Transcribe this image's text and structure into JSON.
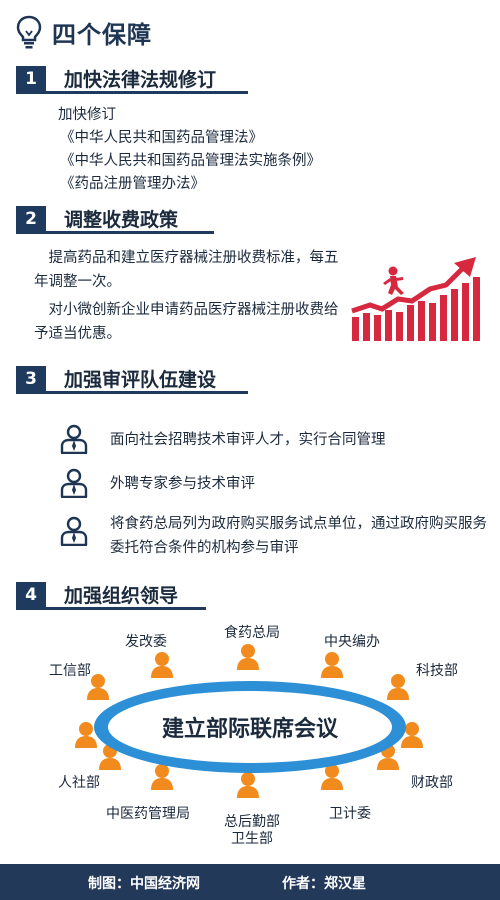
{
  "header": {
    "title": "四个保障",
    "icon": "lightbulb-icon"
  },
  "sections": [
    {
      "num": "1",
      "title": "加快法律法规修订",
      "items": [
        "加快修订",
        "《中华人民共和国药品管理法》",
        "《中华人民共和国药品管理法实施条例》",
        "《药品注册管理办法》"
      ]
    },
    {
      "num": "2",
      "title": "调整收费政策",
      "paragraphs": [
        "提高药品和建立医疗器械注册收费标准，每五年调整一次。",
        "对小微创新企业申请药品医疗器械注册收费给予适当优惠。"
      ],
      "graphic": "growth-chart-runner-icon"
    },
    {
      "num": "3",
      "title": "加强审评队伍建设",
      "items": [
        "面向社会招聘技术审评人才，实行合同管理",
        "外聘专家参与技术审评",
        "将食药总局列为政府购买服务试点单位，通过政府购买服务委托符合条件的机构参与审评"
      ],
      "icon": "person-icon"
    },
    {
      "num": "4",
      "title": "加强组织领导",
      "center": "建立部际联席会议",
      "participants": [
        "发改委",
        "食药总局",
        "中央编办",
        "工信部",
        "科技部",
        "人社部",
        "财政部",
        "中医药管理局",
        "总后勤部卫生部",
        "卫计委"
      ]
    }
  ],
  "footer": {
    "credit": "制图：中国经济网",
    "author": "作者：郑汉星"
  },
  "colors": {
    "navy": "#1e3a5f",
    "accent_red": "#d6283f",
    "person_orange": "#f28b1e",
    "table_blue": "#2d8fd5"
  }
}
